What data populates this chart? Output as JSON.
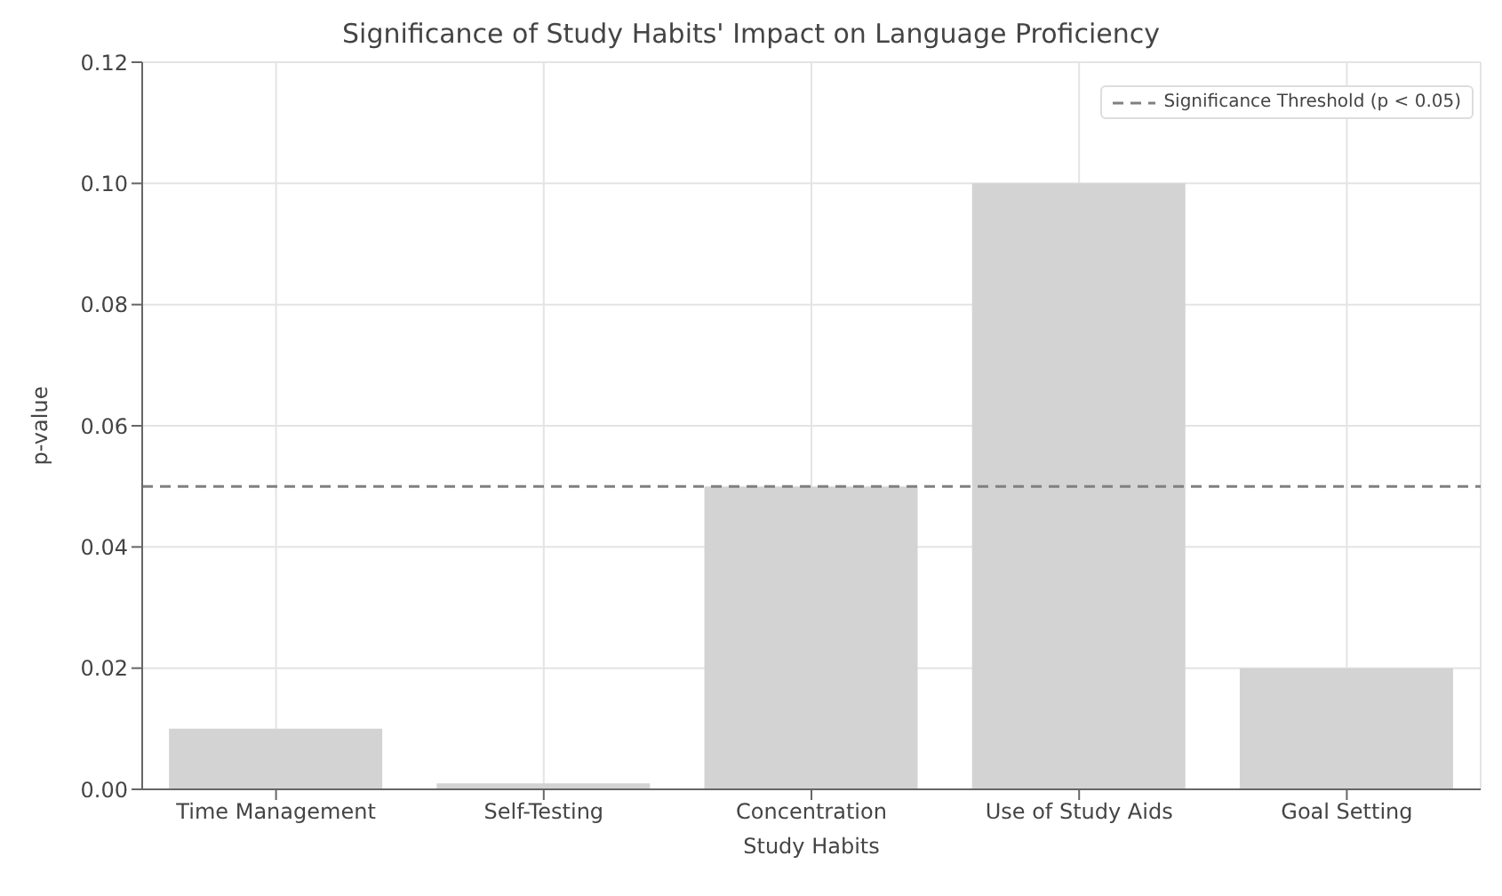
{
  "chart_data": {
    "type": "bar",
    "title": "Significance of Study Habits' Impact on Language Proficiency",
    "xlabel": "Study Habits",
    "ylabel": "p-value",
    "categories": [
      "Time Management",
      "Self-Testing",
      "Concentration",
      "Use of Study Aids",
      "Goal Setting"
    ],
    "values": [
      0.01,
      0.001,
      0.05,
      0.1,
      0.02
    ],
    "color": "#d3d3d3",
    "ylim": [
      0,
      0.12
    ],
    "yticks": [
      {
        "value": 0,
        "label": "0.00"
      },
      {
        "value": 0.02,
        "label": "0.02"
      },
      {
        "value": 0.04,
        "label": "0.04"
      },
      {
        "value": 0.06,
        "label": "0.06"
      },
      {
        "value": 0.08,
        "label": "0.08"
      },
      {
        "value": 0.1,
        "label": "0.10"
      },
      {
        "value": 0.12,
        "label": "0.12"
      }
    ],
    "ref_lines": [
      {
        "axis": "y",
        "value": 0.05,
        "label": "Significance Threshold (p < 0.05)",
        "color": "#808080",
        "line_style": "dashed"
      }
    ],
    "grid": true,
    "legend": "top right"
  }
}
